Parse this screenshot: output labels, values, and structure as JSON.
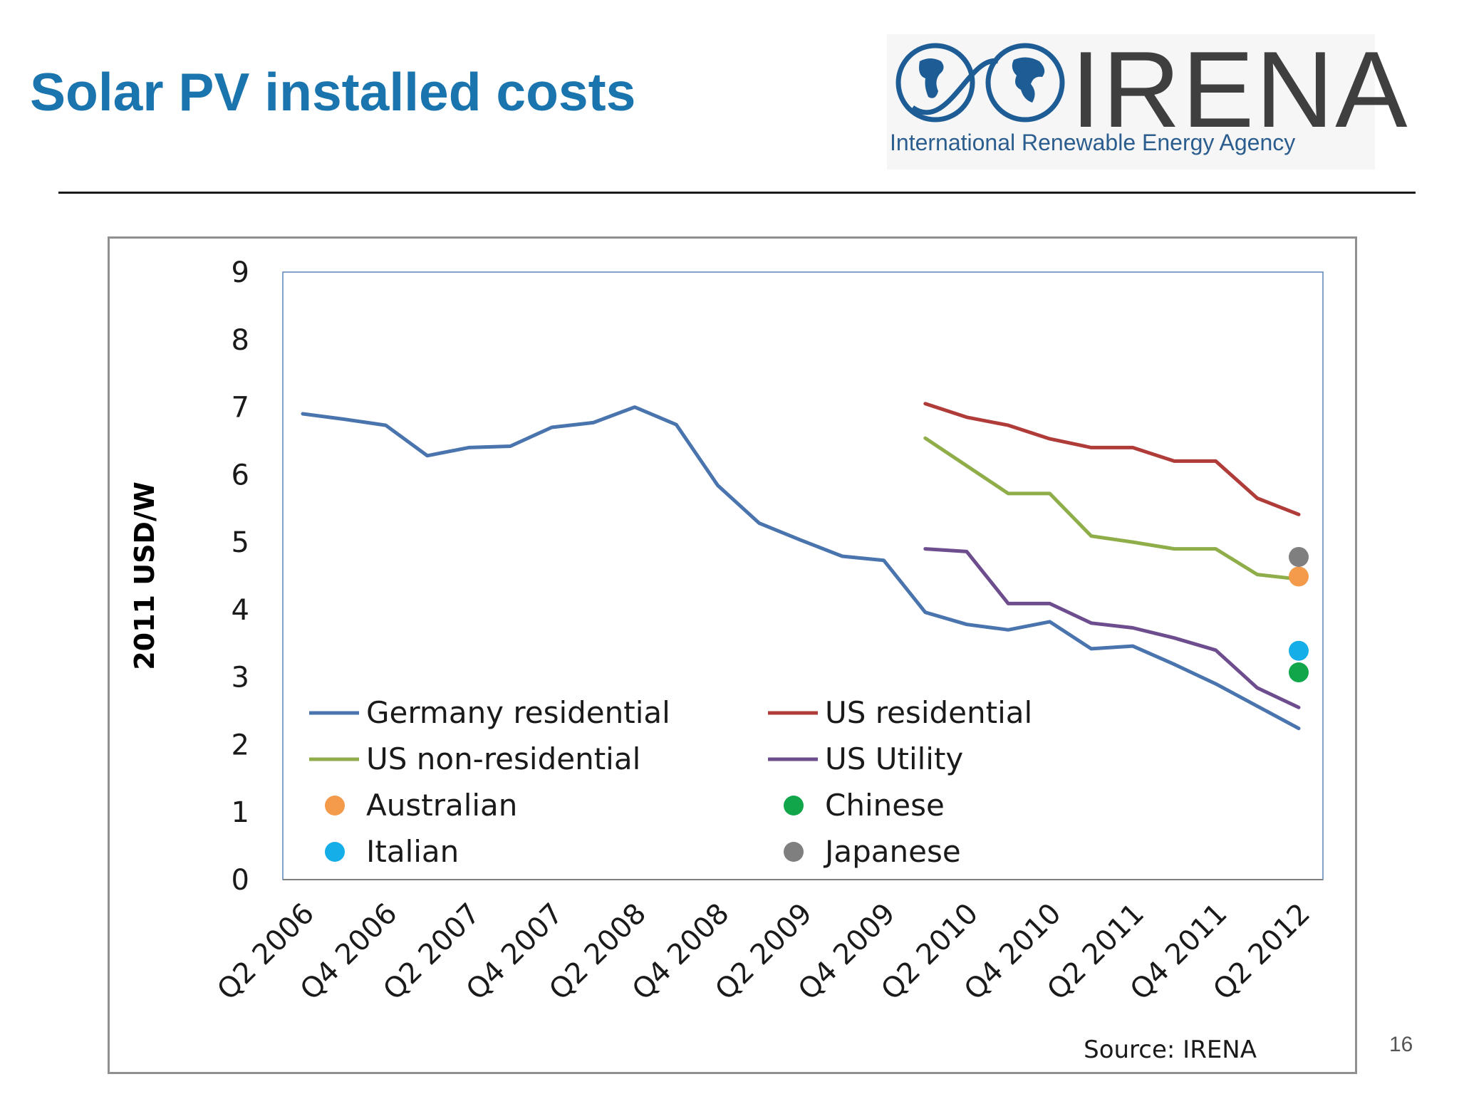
{
  "slide": {
    "title": "Solar PV installed costs",
    "page_number": "16"
  },
  "logo": {
    "name": "IRENA",
    "subtitle": "International Renewable Energy Agency",
    "color_blue": "#1d5c95",
    "color_gray": "#3f3f3f"
  },
  "chart_data": {
    "type": "line",
    "ylabel": "2011 USD/W",
    "ylim": [
      0,
      9
    ],
    "yticks": [
      0,
      1,
      2,
      3,
      4,
      5,
      6,
      7,
      8,
      9
    ],
    "categories": [
      "Q2 2006",
      "Q3 2006",
      "Q4 2006",
      "Q1 2007",
      "Q2 2007",
      "Q3 2007",
      "Q4 2007",
      "Q1 2008",
      "Q2 2008",
      "Q3 2008",
      "Q4 2008",
      "Q1 2009",
      "Q2 2009",
      "Q3 2009",
      "Q4 2009",
      "Q1 2010",
      "Q2 2010",
      "Q3 2010",
      "Q4 2010",
      "Q1 2011",
      "Q2 2011",
      "Q3 2011",
      "Q4 2011",
      "Q1 2012",
      "Q2 2012"
    ],
    "tick_labels": [
      "Q2 2006",
      "Q4 2006",
      "Q2 2007",
      "Q4 2007",
      "Q2 2008",
      "Q4 2008",
      "Q2 2009",
      "Q4 2009",
      "Q2 2010",
      "Q4 2010",
      "Q2 2011",
      "Q4 2011",
      "Q2 2012"
    ],
    "grid": false,
    "source": "Source: IRENA",
    "series": [
      {
        "name": "Germany residential",
        "kind": "line",
        "color": "#4a74ad",
        "values": [
          6.9,
          6.82,
          6.73,
          6.28,
          6.4,
          6.42,
          6.7,
          6.77,
          7.0,
          6.74,
          5.84,
          5.28,
          5.03,
          4.79,
          4.73,
          3.96,
          3.78,
          3.7,
          3.82,
          3.42,
          3.46,
          3.19,
          2.9,
          2.57,
          2.24
        ]
      },
      {
        "name": "US residential",
        "kind": "line",
        "color": "#b03c3a",
        "values": [
          null,
          null,
          null,
          null,
          null,
          null,
          null,
          null,
          null,
          null,
          null,
          null,
          null,
          null,
          null,
          7.05,
          6.85,
          6.73,
          6.53,
          6.4,
          6.4,
          6.2,
          6.2,
          5.65,
          5.41
        ]
      },
      {
        "name": "US non-residential",
        "kind": "line",
        "color": "#8fae4a",
        "values": [
          null,
          null,
          null,
          null,
          null,
          null,
          null,
          null,
          null,
          null,
          null,
          null,
          null,
          null,
          null,
          6.54,
          6.13,
          5.72,
          5.72,
          5.09,
          5.0,
          4.9,
          4.9,
          4.52,
          4.45
        ]
      },
      {
        "name": "US Utility",
        "kind": "line",
        "color": "#6d4d8e",
        "values": [
          null,
          null,
          null,
          null,
          null,
          null,
          null,
          null,
          null,
          null,
          null,
          null,
          null,
          null,
          null,
          4.9,
          4.86,
          4.09,
          4.09,
          3.8,
          3.73,
          3.58,
          3.4,
          2.84,
          2.55
        ]
      },
      {
        "name": "Australian",
        "kind": "point",
        "color": "#f39a4b",
        "x": "Q2 2012",
        "value": 4.49
      },
      {
        "name": "Chinese",
        "kind": "point",
        "color": "#11a64a",
        "x": "Q2 2012",
        "value": 3.07
      },
      {
        "name": "Italian",
        "kind": "point",
        "color": "#16aee8",
        "x": "Q2 2012",
        "value": 3.39
      },
      {
        "name": "Japanese",
        "kind": "point",
        "color": "#7f7f7f",
        "x": "Q2 2012",
        "value": 4.78
      }
    ],
    "legend": {
      "placement": "inside-bottom",
      "order": [
        "Germany residential",
        "US residential",
        "US non-residential",
        "US Utility",
        "Australian",
        "Chinese",
        "Italian",
        "Japanese"
      ]
    }
  }
}
